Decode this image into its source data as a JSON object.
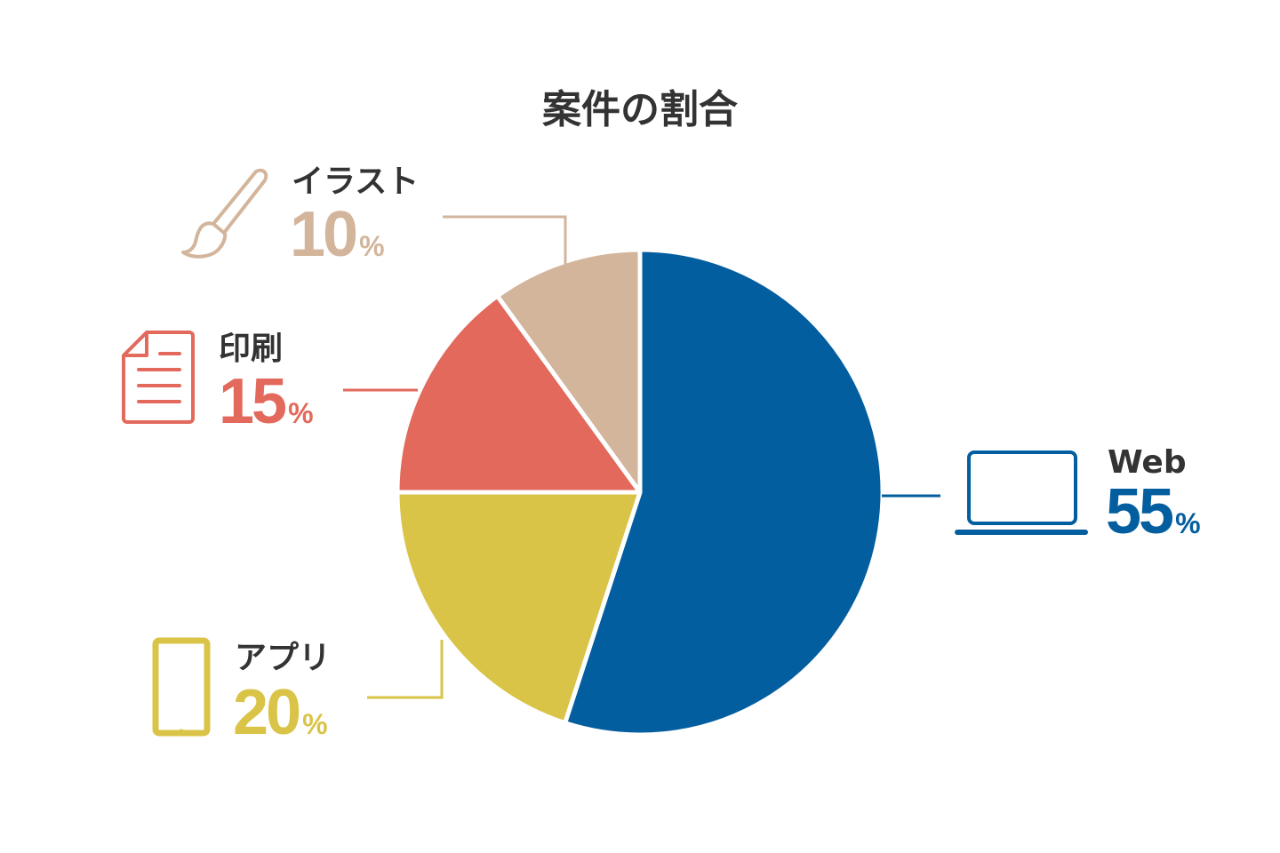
{
  "chart_data": {
    "type": "pie",
    "title": "案件の割合",
    "slices": [
      {
        "label": "Web",
        "value": 55,
        "unit": "%",
        "color": "#035e9f",
        "icon": "laptop-icon"
      },
      {
        "label": "アプリ",
        "value": 20,
        "unit": "%",
        "color": "#d9c447",
        "icon": "tablet-icon"
      },
      {
        "label": "印刷",
        "value": 15,
        "unit": "%",
        "color": "#e2695b",
        "icon": "document-icon"
      },
      {
        "label": "イラスト",
        "value": 10,
        "unit": "%",
        "color": "#d2b59b",
        "icon": "paintbrush-icon"
      }
    ],
    "start": "12 o'clock",
    "direction": "clockwise"
  },
  "colors": {
    "title": "#333333",
    "label": "#333333",
    "background": "#ffffff"
  }
}
